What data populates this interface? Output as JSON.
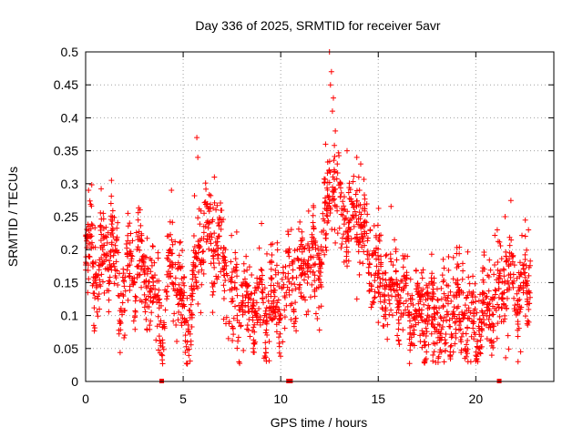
{
  "chart_data": {
    "type": "scatter",
    "title": "Day 336 of 2025, SRMTID for receiver 5avr",
    "xlabel": "GPS time / hours",
    "ylabel": "SRMTID / TECUs",
    "xlim": [
      0,
      24
    ],
    "ylim": [
      0,
      0.5
    ],
    "xticks": [
      0,
      5,
      10,
      15,
      20
    ],
    "xtick_labels": [
      "0",
      "5",
      "10",
      "15",
      "20"
    ],
    "yticks": [
      0,
      0.05,
      0.1,
      0.15,
      0.2,
      0.25,
      0.3,
      0.35,
      0.4,
      0.45,
      0.5
    ],
    "ytick_labels": [
      "0",
      "0.05",
      "0.1",
      "0.15",
      "0.2",
      "0.25",
      "0.3",
      "0.35",
      "0.4",
      "0.45",
      "0.5"
    ],
    "grid": true,
    "marker": "+",
    "series_color": "#ff0000",
    "zero_markers_x": [
      3.9,
      10.4,
      10.5,
      21.2
    ],
    "trend": [
      [
        0.0,
        0.18
      ],
      [
        0.3,
        0.21
      ],
      [
        0.6,
        0.15
      ],
      [
        1.0,
        0.19
      ],
      [
        1.4,
        0.2
      ],
      [
        1.7,
        0.13
      ],
      [
        2.2,
        0.17
      ],
      [
        2.7,
        0.18
      ],
      [
        3.2,
        0.16
      ],
      [
        3.6,
        0.11
      ],
      [
        4.0,
        0.09
      ],
      [
        4.4,
        0.19
      ],
      [
        4.8,
        0.13
      ],
      [
        5.3,
        0.1
      ],
      [
        5.8,
        0.2
      ],
      [
        6.2,
        0.22
      ],
      [
        6.7,
        0.21
      ],
      [
        7.2,
        0.17
      ],
      [
        7.6,
        0.11
      ],
      [
        8.1,
        0.13
      ],
      [
        8.6,
        0.12
      ],
      [
        9.1,
        0.11
      ],
      [
        9.6,
        0.12
      ],
      [
        10.0,
        0.1
      ],
      [
        10.4,
        0.15
      ],
      [
        10.9,
        0.16
      ],
      [
        11.4,
        0.18
      ],
      [
        11.9,
        0.17
      ],
      [
        12.3,
        0.24
      ],
      [
        12.7,
        0.3
      ],
      [
        13.1,
        0.27
      ],
      [
        13.6,
        0.24
      ],
      [
        14.0,
        0.25
      ],
      [
        14.5,
        0.2
      ],
      [
        15.0,
        0.15
      ],
      [
        15.5,
        0.14
      ],
      [
        16.0,
        0.14
      ],
      [
        16.5,
        0.12
      ],
      [
        17.0,
        0.11
      ],
      [
        17.5,
        0.1
      ],
      [
        18.0,
        0.09
      ],
      [
        18.5,
        0.09
      ],
      [
        19.0,
        0.11
      ],
      [
        19.5,
        0.1
      ],
      [
        20.0,
        0.09
      ],
      [
        20.5,
        0.11
      ],
      [
        21.0,
        0.12
      ],
      [
        21.5,
        0.15
      ],
      [
        22.0,
        0.15
      ],
      [
        22.4,
        0.13
      ],
      [
        22.8,
        0.15
      ]
    ],
    "spikes": [
      [
        0.15,
        0.29
      ],
      [
        1.3,
        0.27
      ],
      [
        4.4,
        0.29
      ],
      [
        5.7,
        0.37
      ],
      [
        5.75,
        0.34
      ],
      [
        6.6,
        0.31
      ],
      [
        12.5,
        0.5
      ],
      [
        12.6,
        0.47
      ],
      [
        12.55,
        0.45
      ],
      [
        12.7,
        0.43
      ],
      [
        12.65,
        0.41
      ],
      [
        12.8,
        0.38
      ],
      [
        12.3,
        0.36
      ],
      [
        13.4,
        0.35
      ],
      [
        13.9,
        0.34
      ],
      [
        14.1,
        0.33
      ],
      [
        14.0,
        0.31
      ],
      [
        12.9,
        0.33
      ],
      [
        21.1,
        0.23
      ],
      [
        21.5,
        0.25
      ],
      [
        22.7,
        0.23
      ],
      [
        8.6,
        0.05
      ],
      [
        17.8,
        0.04
      ],
      [
        19.6,
        0.03
      ],
      [
        20.1,
        0.03
      ],
      [
        22.3,
        0.045
      ],
      [
        10.1,
        0.06
      ]
    ],
    "n_points": 2200,
    "seed": 336
  }
}
